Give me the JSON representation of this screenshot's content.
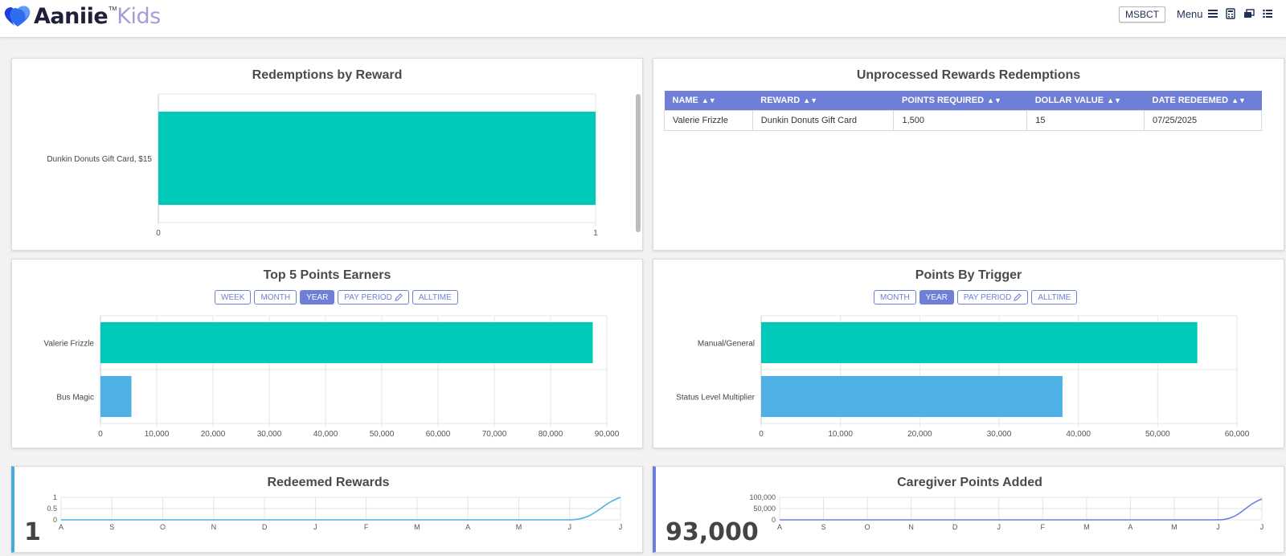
{
  "header": {
    "logo_main": "Aaniie",
    "logo_tm": "TM",
    "logo_kids": "Kids",
    "org_button": "MSBCT",
    "menu_label": "Menu",
    "icons": [
      "hamburger-icon",
      "calculator-icon",
      "windows-icon",
      "list-icon"
    ]
  },
  "redemptions_by_reward": {
    "title": "Redemptions by Reward",
    "chart_data": {
      "type": "bar",
      "orientation": "horizontal",
      "categories": [
        "Dunkin Donuts Gift Card, $15"
      ],
      "values": [
        1
      ],
      "xlim": [
        0,
        1
      ],
      "xticks": [
        "0",
        "1"
      ],
      "color": "#00c9b7"
    }
  },
  "unprocessed": {
    "title": "Unprocessed Rewards Redemptions",
    "columns": [
      "NAME",
      "REWARD",
      "POINTS REQUIRED",
      "DOLLAR VALUE",
      "DATE REDEEMED"
    ],
    "rows": [
      [
        "Valerie Frizzle",
        "Dunkin Donuts Gift Card",
        "1,500",
        "15",
        "07/25/2025"
      ]
    ]
  },
  "top5": {
    "title": "Top 5 Points Earners",
    "buttons": [
      {
        "label": "WEEK",
        "active": false
      },
      {
        "label": "MONTH",
        "active": false
      },
      {
        "label": "YEAR",
        "active": true
      },
      {
        "label": "PAY PERIOD",
        "active": false,
        "icon": "pencil-icon"
      },
      {
        "label": "ALLTIME",
        "active": false
      }
    ],
    "chart_data": {
      "type": "bar",
      "orientation": "horizontal",
      "categories": [
        "Valerie Frizzle",
        "Bus Magic"
      ],
      "values": [
        87500,
        5500
      ],
      "colors": [
        "#00c9b7",
        "#4fb0e6"
      ],
      "xlim": [
        0,
        90000
      ],
      "xticks": [
        "0",
        "10,000",
        "20,000",
        "30,000",
        "40,000",
        "50,000",
        "60,000",
        "70,000",
        "80,000",
        "90,000"
      ]
    }
  },
  "trigger": {
    "title": "Points By Trigger",
    "buttons": [
      {
        "label": "MONTH",
        "active": false
      },
      {
        "label": "YEAR",
        "active": true
      },
      {
        "label": "PAY PERIOD",
        "active": false,
        "icon": "pencil-icon"
      },
      {
        "label": "ALLTIME",
        "active": false
      }
    ],
    "chart_data": {
      "type": "bar",
      "orientation": "horizontal",
      "categories": [
        "Manual/General",
        "Status Level Multiplier"
      ],
      "values": [
        55000,
        38000
      ],
      "colors": [
        "#00c9b7",
        "#4fb0e6"
      ],
      "xlim": [
        0,
        60000
      ],
      "xticks": [
        "0",
        "10,000",
        "20,000",
        "30,000",
        "40,000",
        "50,000",
        "60,000"
      ]
    }
  },
  "redeemed": {
    "title": "Redeemed Rewards",
    "value": "1",
    "chart_data": {
      "type": "line",
      "x": [
        "A",
        "S",
        "O",
        "N",
        "D",
        "J",
        "F",
        "M",
        "A",
        "M",
        "J",
        "J"
      ],
      "values": [
        0,
        0,
        0,
        0,
        0,
        0,
        0,
        0,
        0,
        0,
        0,
        1
      ],
      "yticks": [
        "1",
        "0.5",
        "0"
      ],
      "ylim": [
        0,
        1
      ],
      "color": "#4fb0e6"
    }
  },
  "caregiver": {
    "title": "Caregiver Points Added",
    "value": "93,000",
    "chart_data": {
      "type": "line",
      "x": [
        "A",
        "S",
        "O",
        "N",
        "D",
        "J",
        "F",
        "M",
        "A",
        "M",
        "J",
        "J"
      ],
      "values": [
        0,
        0,
        0,
        0,
        0,
        0,
        0,
        0,
        0,
        0,
        0,
        93000
      ],
      "yticks": [
        "100,000",
        "50,000",
        "0"
      ],
      "ylim": [
        0,
        100000
      ],
      "color": "#6f7fd8"
    }
  }
}
